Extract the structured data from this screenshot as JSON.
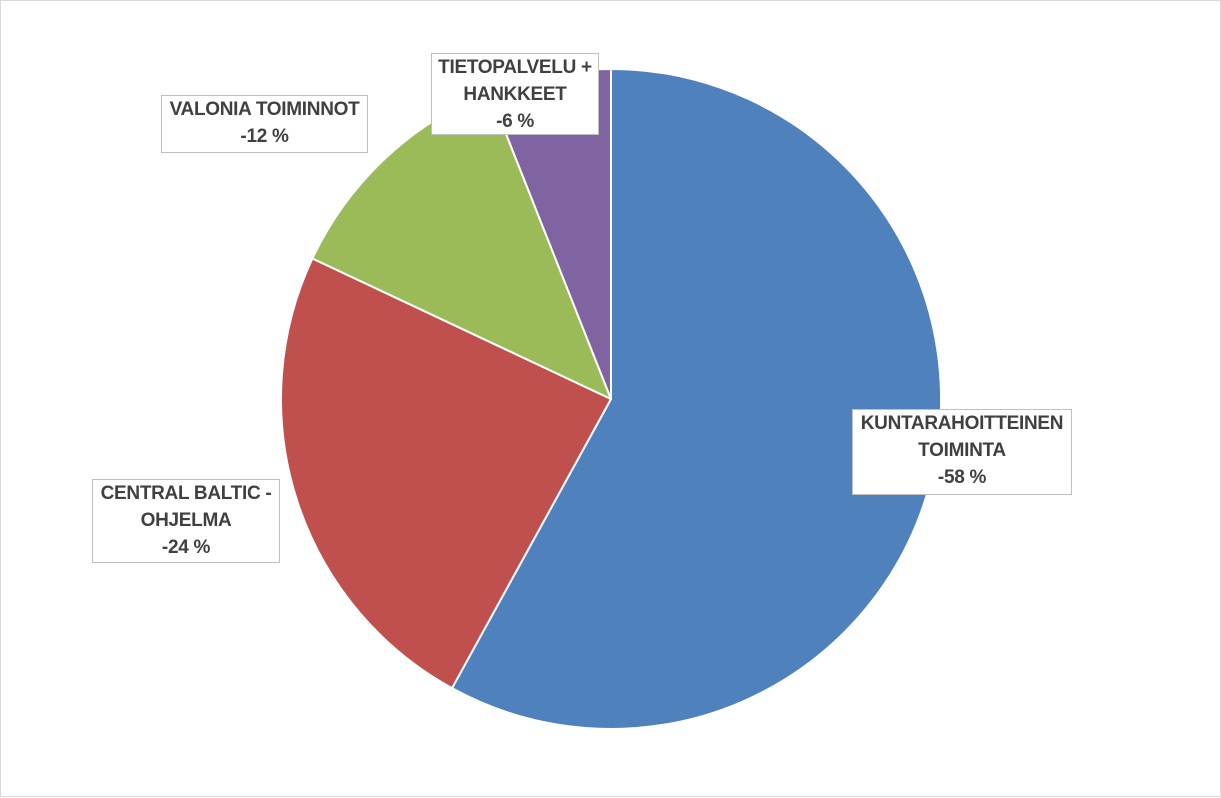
{
  "chart_data": {
    "type": "pie",
    "title": "",
    "slices": [
      {
        "label_lines": [
          "KUNTARAHOITTEINEN",
          "TOIMINTA"
        ],
        "value_text": "-58 %",
        "value": 58,
        "color": "#4f81bd"
      },
      {
        "label_lines": [
          "CENTRAL BALTIC -",
          "OHJELMA"
        ],
        "value_text": "-24 %",
        "value": 24,
        "color": "#c0504d"
      },
      {
        "label_lines": [
          "VALONIA TOIMINNOT"
        ],
        "value_text": "-12 %",
        "value": 12,
        "color": "#9bbb59"
      },
      {
        "label_lines": [
          "TIETOPALVELU +",
          "HANKKEET"
        ],
        "value_text": "-6 %",
        "value": 6,
        "color": "#8064a2"
      }
    ],
    "start": "top",
    "direction": "clockwise",
    "legend": "none"
  }
}
